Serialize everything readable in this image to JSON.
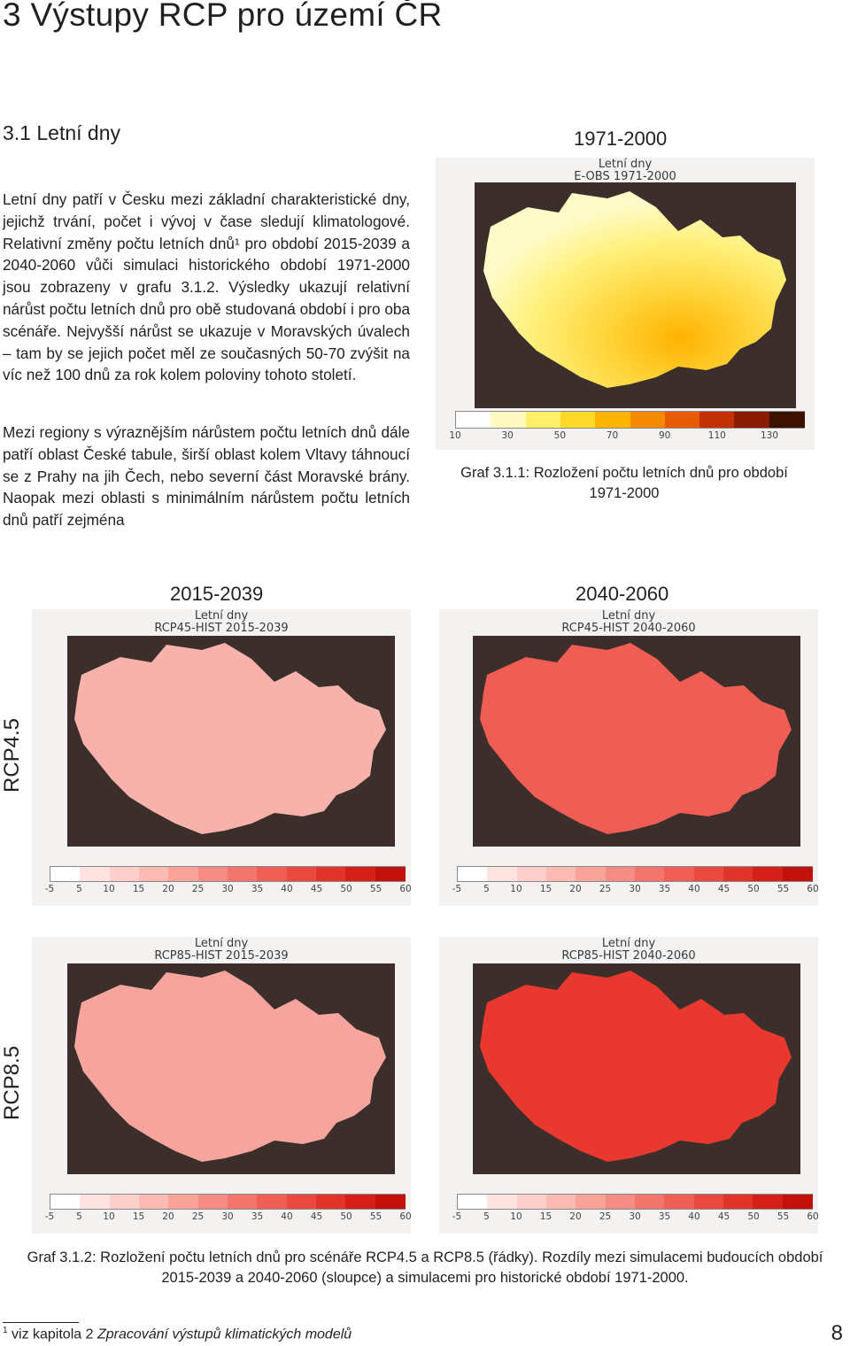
{
  "heading": "3 Výstupy RCP pro území ČR",
  "subheading": "3.1  Letní dny",
  "paragraphs": {
    "p1": "Letní dny patří v Česku mezi základní charakteristické dny, jejichž trvání, počet i vývoj v čase sledují klimatologové. Relativní změny počtu letních dnů¹ pro období 2015-2039 a 2040-2060 vůči simulaci historického období 1971-2000 jsou zobrazeny v grafu 3.1.2. Výsledky ukazují relativní nárůst počtu letních dnů pro obě studovaná období i pro oba scénáře. Nejvyšší nárůst se ukazuje v Moravských úvalech – tam by se jejich počet měl ze současných 50-70 zvýšit na víc než 100 dnů za rok kolem poloviny tohoto století.",
    "p2": "Mezi regiony s výraznějším nárůstem počtu letních dnů dále patří oblast České tabule, širší oblast kolem Vltavy táhnoucí se z Prahy na jih Čech, nebo severní část Moravské brány. Naopak mezi oblasti s minimálním nárůstem počtu letních dnů patří zejména"
  },
  "top_map": {
    "period": "1971-2000",
    "title_line1": "Letní dny",
    "title_line2": "E-OBS 1971-2000",
    "colorbar_ticks": [
      "10",
      "30",
      "50",
      "70",
      "90",
      "110",
      "130"
    ],
    "colors": [
      "#ffffff",
      "#fff9c2",
      "#fff06a",
      "#ffd92a",
      "#ffb400",
      "#f58a00",
      "#e85a00",
      "#c43000",
      "#8a1a00",
      "#3c1100"
    ],
    "caption": "Graf 3.1.1: Rozložení počtu letních dnů pro období 1971-2000"
  },
  "grid": {
    "col1_period": "2015-2039",
    "col2_period": "2040-2060",
    "row1_label": "RCP4.5",
    "row2_label": "RCP8.5",
    "maps": {
      "r1c1": {
        "line1": "Letní dny",
        "line2": "RCP45-HIST 2015-2039"
      },
      "r1c2": {
        "line1": "Letní dny",
        "line2": "RCP45-HIST 2040-2060"
      },
      "r2c1": {
        "line1": "Letní dny",
        "line2": "RCP85-HIST 2015-2039"
      },
      "r2c2": {
        "line1": "Letní dny",
        "line2": "RCP85-HIST 2040-2060"
      }
    },
    "colorbar_ticks": [
      "-5",
      "5",
      "10",
      "15",
      "20",
      "25",
      "30",
      "35",
      "40",
      "45",
      "50",
      "55",
      "60"
    ],
    "colors": [
      "#ffffff",
      "#fde3e1",
      "#fccfcb",
      "#fbbab4",
      "#f9a39b",
      "#f68d84",
      "#f3766c",
      "#ef5f55",
      "#e9493f",
      "#e0342b",
      "#d42019",
      "#c2110b"
    ],
    "caption": "Graf 3.1.2: Rozložení počtu letních dnů pro scénáře RCP4.5 a RCP8.5 (řádky). Rozdíly mezi simulacemi budoucích období 2015-2039 a 2040-2060 (sloupce) a simulacemi pro historické období 1971-2000."
  },
  "footnote": {
    "mark": "1",
    "prefix": " viz kapitola 2 ",
    "italic": "Zpracování výstupů klimatických modelů"
  },
  "page_number": "8"
}
